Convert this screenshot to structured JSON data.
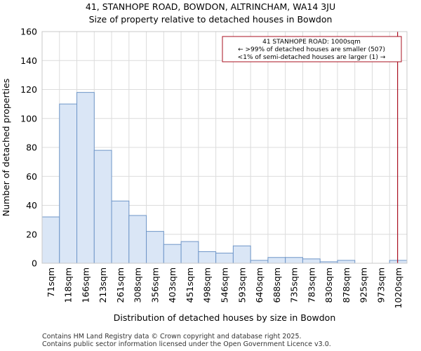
{
  "chart_data": {
    "type": "bar",
    "title_lines": [
      "41, STANHOPE ROAD, BOWDON, ALTRINCHAM, WA14 3JU",
      "Size of property relative to detached houses in Bowdon"
    ],
    "xlabel": "Distribution of detached houses by size in Bowdon",
    "ylabel": "Number of detached properties",
    "x_tick_labels": [
      "71sqm",
      "118sqm",
      "166sqm",
      "213sqm",
      "261sqm",
      "308sqm",
      "356sqm",
      "403sqm",
      "451sqm",
      "498sqm",
      "546sqm",
      "593sqm",
      "640sqm",
      "688sqm",
      "735sqm",
      "783sqm",
      "830sqm",
      "878sqm",
      "925sqm",
      "973sqm",
      "1020sqm"
    ],
    "values": [
      32,
      110,
      118,
      78,
      43,
      33,
      22,
      13,
      15,
      8,
      7,
      12,
      2,
      4,
      4,
      3,
      1,
      2,
      0,
      0,
      2
    ],
    "y_ticks": [
      0,
      20,
      40,
      60,
      80,
      100,
      120,
      140,
      160
    ],
    "ylim": [
      0,
      160
    ],
    "grid": true,
    "bar_color": "#dae6f6",
    "bar_edge_color": "#6f96c8",
    "marker": {
      "value_sqm": 1000,
      "position_bins": 20.5,
      "color": "#aa1122"
    },
    "annotation": {
      "lines": [
        "41 STANHOPE ROAD: 1000sqm",
        "← >99% of detached houses are smaller (507)",
        "<1% of semi-detached houses are larger (1) →"
      ],
      "border_color": "#aa1122"
    }
  },
  "footer": {
    "line1": "Contains HM Land Registry data © Crown copyright and database right 2025.",
    "line2": "Contains public sector information licensed under the Open Government Licence v3.0."
  }
}
